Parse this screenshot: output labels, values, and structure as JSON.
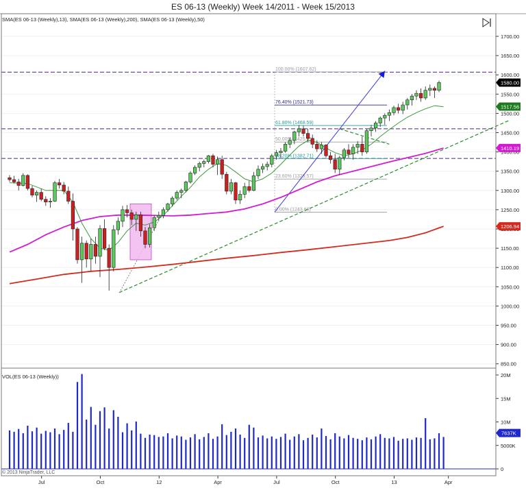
{
  "chart_data": {
    "type": "candlestick",
    "title": "ES 06-13 (Weekly)  Week 14/2011 - Week 15/2013",
    "indicators_label": "SMA(ES 06-13 (Weekly),13), SMA(ES 06-13 (Weekly),200), SMA(ES 06-13 (Weekly),50)",
    "volume_label": "VOL(ES 06-13 (Weekly))",
    "copyright": "© 2013 NinjaTrader, LLC",
    "price_axis": {
      "min": 850,
      "max": 1750,
      "ticks": [
        "850.00",
        "900.00",
        "950.00",
        "1000.00",
        "1050.00",
        "1100.00",
        "1150.00",
        "1200.00",
        "1250.00",
        "1300.00",
        "1350.00",
        "1400.00",
        "1450.00",
        "1500.00",
        "1550.00",
        "1600.00",
        "1650.00",
        "1700.00"
      ]
    },
    "volume_axis": {
      "max": 20000000,
      "ticks": [
        {
          "v": 0,
          "label": "0"
        },
        {
          "v": 5000000,
          "label": "5000K"
        },
        {
          "v": 10000000,
          "label": "10M"
        },
        {
          "v": 15000000,
          "label": "15M"
        },
        {
          "v": 20000000,
          "label": "20M"
        }
      ]
    },
    "time_labels": [
      {
        "i": 7,
        "label": "Jul"
      },
      {
        "i": 20,
        "label": "Oct"
      },
      {
        "i": 33,
        "label": "12"
      },
      {
        "i": 46,
        "label": "Apr"
      },
      {
        "i": 59,
        "label": "Jul"
      },
      {
        "i": 72,
        "label": "Oct"
      },
      {
        "i": 85,
        "label": "13"
      },
      {
        "i": 97,
        "label": "Apr"
      }
    ],
    "badges": [
      {
        "label": "1580.00",
        "value": 1580,
        "color": "#000000"
      },
      {
        "label": "1517.56",
        "value": 1517.56,
        "color": "#1e7a1e"
      },
      {
        "label": "1410.19",
        "value": 1410.19,
        "color": "#d21bd2"
      },
      {
        "label": "1206.94",
        "value": 1206.94,
        "color": "#d42a1c"
      }
    ],
    "volume_badge": {
      "label": "7637K",
      "value": 7637000
    },
    "fib_levels": [
      {
        "label": "100.00% (1607.62)",
        "value": 1607.62,
        "color": "#9a9a9a"
      },
      {
        "label": "76.40% (1521.73)",
        "value": 1521.73,
        "color": "#2a2a80"
      },
      {
        "label": "61.80% (1468.59)",
        "value": 1468.59,
        "color": "#2a9a9a"
      },
      {
        "label": "50.00% (1425.65)",
        "value": 1425.65,
        "color": "#9a9a9a"
      },
      {
        "label": "38.20% (1382.71)",
        "value": 1382.71,
        "color": "#2a9a9a"
      },
      {
        "label": "23.60% (1329.57)",
        "value": 1329.57,
        "color": "#9a9a9a"
      },
      {
        "label": "0.00% (1243.68)",
        "value": 1243.68,
        "color": "#9a9a9a"
      }
    ],
    "horizontal_lines": [
      1607,
      1460,
      1383
    ],
    "candles": [
      [
        1333,
        1340,
        1322,
        1328
      ],
      [
        1328,
        1338,
        1318,
        1322
      ],
      [
        1322,
        1330,
        1300,
        1313
      ],
      [
        1313,
        1345,
        1310,
        1339
      ],
      [
        1339,
        1342,
        1300,
        1305
      ],
      [
        1305,
        1312,
        1282,
        1288
      ],
      [
        1288,
        1300,
        1270,
        1295
      ],
      [
        1295,
        1305,
        1272,
        1277
      ],
      [
        1277,
        1285,
        1260,
        1270
      ],
      [
        1270,
        1280,
        1255,
        1272
      ],
      [
        1272,
        1325,
        1270,
        1320
      ],
      [
        1320,
        1330,
        1305,
        1314
      ],
      [
        1314,
        1322,
        1290,
        1298
      ],
      [
        1298,
        1310,
        1265,
        1272
      ],
      [
        1272,
        1292,
        1170,
        1200
      ],
      [
        1200,
        1205,
        1110,
        1120
      ],
      [
        1120,
        1180,
        1060,
        1163
      ],
      [
        1163,
        1170,
        1100,
        1122
      ],
      [
        1122,
        1175,
        1090,
        1160
      ],
      [
        1160,
        1180,
        1110,
        1129
      ],
      [
        1129,
        1210,
        1075,
        1201
      ],
      [
        1201,
        1225,
        1145,
        1150
      ],
      [
        1150,
        1160,
        1040,
        1100
      ],
      [
        1100,
        1210,
        1090,
        1198
      ],
      [
        1198,
        1230,
        1185,
        1220
      ],
      [
        1220,
        1260,
        1205,
        1250
      ],
      [
        1250,
        1262,
        1230,
        1242
      ],
      [
        1242,
        1250,
        1210,
        1225
      ],
      [
        1225,
        1245,
        1195,
        1237
      ],
      [
        1237,
        1245,
        1180,
        1195
      ],
      [
        1195,
        1205,
        1150,
        1160
      ],
      [
        1160,
        1212,
        1152,
        1203
      ],
      [
        1203,
        1235,
        1195,
        1230
      ],
      [
        1230,
        1245,
        1220,
        1235
      ],
      [
        1235,
        1256,
        1228,
        1250
      ],
      [
        1250,
        1268,
        1245,
        1265
      ],
      [
        1265,
        1285,
        1258,
        1280
      ],
      [
        1280,
        1300,
        1275,
        1295
      ],
      [
        1295,
        1305,
        1280,
        1300
      ],
      [
        1300,
        1325,
        1295,
        1322
      ],
      [
        1322,
        1350,
        1318,
        1345
      ],
      [
        1345,
        1365,
        1340,
        1360
      ],
      [
        1360,
        1375,
        1350,
        1370
      ],
      [
        1370,
        1380,
        1360,
        1375
      ],
      [
        1375,
        1392,
        1370,
        1390
      ],
      [
        1390,
        1395,
        1360,
        1368
      ],
      [
        1368,
        1388,
        1340,
        1380
      ],
      [
        1380,
        1390,
        1330,
        1342
      ],
      [
        1342,
        1348,
        1290,
        1298
      ],
      [
        1298,
        1330,
        1290,
        1320
      ],
      [
        1320,
        1322,
        1265,
        1275
      ],
      [
        1275,
        1300,
        1265,
        1290
      ],
      [
        1290,
        1320,
        1280,
        1310
      ],
      [
        1310,
        1325,
        1295,
        1300
      ],
      [
        1300,
        1348,
        1298,
        1338
      ],
      [
        1338,
        1365,
        1330,
        1355
      ],
      [
        1355,
        1370,
        1345,
        1362
      ],
      [
        1362,
        1375,
        1352,
        1368
      ],
      [
        1368,
        1395,
        1360,
        1390
      ],
      [
        1390,
        1405,
        1380,
        1398
      ],
      [
        1398,
        1410,
        1385,
        1402
      ],
      [
        1402,
        1425,
        1398,
        1420
      ],
      [
        1420,
        1438,
        1410,
        1430
      ],
      [
        1430,
        1455,
        1420,
        1452
      ],
      [
        1452,
        1470,
        1440,
        1460
      ],
      [
        1460,
        1468,
        1440,
        1448
      ],
      [
        1448,
        1460,
        1425,
        1435
      ],
      [
        1435,
        1445,
        1410,
        1420
      ],
      [
        1420,
        1430,
        1400,
        1408
      ],
      [
        1408,
        1425,
        1395,
        1418
      ],
      [
        1418,
        1420,
        1385,
        1390
      ],
      [
        1390,
        1400,
        1370,
        1380
      ],
      [
        1380,
        1395,
        1345,
        1355
      ],
      [
        1355,
        1390,
        1340,
        1385
      ],
      [
        1385,
        1410,
        1378,
        1405
      ],
      [
        1405,
        1420,
        1385,
        1395
      ],
      [
        1395,
        1420,
        1380,
        1412
      ],
      [
        1412,
        1428,
        1395,
        1420
      ],
      [
        1420,
        1440,
        1390,
        1400
      ],
      [
        1400,
        1460,
        1395,
        1455
      ],
      [
        1455,
        1470,
        1440,
        1462
      ],
      [
        1462,
        1480,
        1452,
        1475
      ],
      [
        1475,
        1492,
        1465,
        1488
      ],
      [
        1488,
        1500,
        1470,
        1495
      ],
      [
        1495,
        1510,
        1480,
        1502
      ],
      [
        1502,
        1520,
        1495,
        1515
      ],
      [
        1515,
        1525,
        1500,
        1508
      ],
      [
        1508,
        1530,
        1498,
        1522
      ],
      [
        1522,
        1540,
        1510,
        1535
      ],
      [
        1535,
        1550,
        1520,
        1545
      ],
      [
        1545,
        1560,
        1535,
        1552
      ],
      [
        1552,
        1565,
        1530,
        1540
      ],
      [
        1540,
        1570,
        1535,
        1560
      ],
      [
        1560,
        1575,
        1545,
        1565
      ],
      [
        1565,
        1570,
        1540,
        1560
      ],
      [
        1560,
        1585,
        1555,
        1580
      ]
    ],
    "volumes": [
      8.2,
      7.9,
      8.5,
      7.6,
      9.2,
      8.0,
      8.8,
      7.5,
      8.1,
      7.8,
      8.6,
      7.4,
      8.3,
      9.8,
      7.9,
      18.5,
      20.2,
      10.5,
      13.2,
      9.4,
      12.3,
      13.1,
      8.6,
      12.5,
      11.1,
      7.8,
      9.7,
      8.2,
      10.1,
      7.5,
      6.6,
      7.3,
      7.2,
      6.8,
      6.9,
      7.6,
      6.5,
      7.1,
      6.9,
      6.2,
      6.7,
      7.4,
      6.3,
      6.8,
      7.6,
      6.4,
      6.9,
      9.5,
      7.2,
      7.9,
      8.6,
      7.3,
      6.6,
      9.4,
      8.8,
      6.7,
      7.1,
      6.5,
      6.9,
      6.4,
      6.8,
      7.5,
      6.2,
      6.9,
      7.4,
      6.1,
      6.6,
      7.3,
      6.7,
      8.6,
      7.0,
      6.3,
      7.6,
      6.9,
      6.5,
      7.2,
      6.6,
      6.4,
      6.1,
      6.7,
      6.3,
      6.9,
      7.4,
      6.6,
      6.5,
      6.8,
      6.0,
      6.4,
      6.5,
      6.2,
      6.7,
      6.6,
      10.8,
      6.3,
      6.5,
      7.6,
      6.8
    ],
    "sma13": [
      [
        0,
        1320
      ],
      [
        4,
        1318
      ],
      [
        8,
        1300
      ],
      [
        12,
        1300
      ],
      [
        14,
        1270
      ],
      [
        16,
        1215
      ],
      [
        18,
        1175
      ],
      [
        20,
        1150
      ],
      [
        22,
        1145
      ],
      [
        24,
        1165
      ],
      [
        26,
        1195
      ],
      [
        28,
        1215
      ],
      [
        30,
        1210
      ],
      [
        32,
        1218
      ],
      [
        34,
        1235
      ],
      [
        36,
        1260
      ],
      [
        38,
        1285
      ],
      [
        40,
        1308
      ],
      [
        42,
        1335
      ],
      [
        44,
        1355
      ],
      [
        46,
        1370
      ],
      [
        48,
        1365
      ],
      [
        50,
        1348
      ],
      [
        52,
        1330
      ],
      [
        54,
        1322
      ],
      [
        56,
        1330
      ],
      [
        58,
        1345
      ],
      [
        60,
        1368
      ],
      [
        62,
        1392
      ],
      [
        64,
        1415
      ],
      [
        66,
        1430
      ],
      [
        68,
        1425
      ],
      [
        70,
        1410
      ],
      [
        72,
        1398
      ],
      [
        74,
        1390
      ],
      [
        76,
        1395
      ],
      [
        78,
        1405
      ],
      [
        80,
        1420
      ],
      [
        82,
        1440
      ],
      [
        84,
        1458
      ],
      [
        86,
        1475
      ],
      [
        88,
        1490
      ],
      [
        90,
        1502
      ],
      [
        92,
        1512
      ],
      [
        94,
        1520
      ],
      [
        96,
        1517
      ]
    ],
    "sma50": [
      [
        0,
        1140
      ],
      [
        4,
        1160
      ],
      [
        8,
        1185
      ],
      [
        12,
        1205
      ],
      [
        16,
        1222
      ],
      [
        20,
        1232
      ],
      [
        24,
        1236
      ],
      [
        28,
        1236
      ],
      [
        32,
        1235
      ],
      [
        36,
        1234
      ],
      [
        40,
        1236
      ],
      [
        44,
        1240
      ],
      [
        48,
        1244
      ],
      [
        52,
        1252
      ],
      [
        56,
        1265
      ],
      [
        60,
        1282
      ],
      [
        64,
        1302
      ],
      [
        68,
        1322
      ],
      [
        72,
        1338
      ],
      [
        76,
        1350
      ],
      [
        80,
        1362
      ],
      [
        84,
        1374
      ],
      [
        88,
        1385
      ],
      [
        92,
        1396
      ],
      [
        96,
        1410
      ]
    ],
    "sma200": [
      [
        0,
        1058
      ],
      [
        6,
        1070
      ],
      [
        12,
        1082
      ],
      [
        18,
        1090
      ],
      [
        24,
        1095
      ],
      [
        30,
        1101
      ],
      [
        36,
        1108
      ],
      [
        42,
        1116
      ],
      [
        48,
        1124
      ],
      [
        54,
        1131
      ],
      [
        60,
        1139
      ],
      [
        66,
        1146
      ],
      [
        72,
        1154
      ],
      [
        78,
        1162
      ],
      [
        84,
        1170
      ],
      [
        88,
        1178
      ],
      [
        92,
        1190
      ],
      [
        96,
        1207
      ]
    ]
  }
}
